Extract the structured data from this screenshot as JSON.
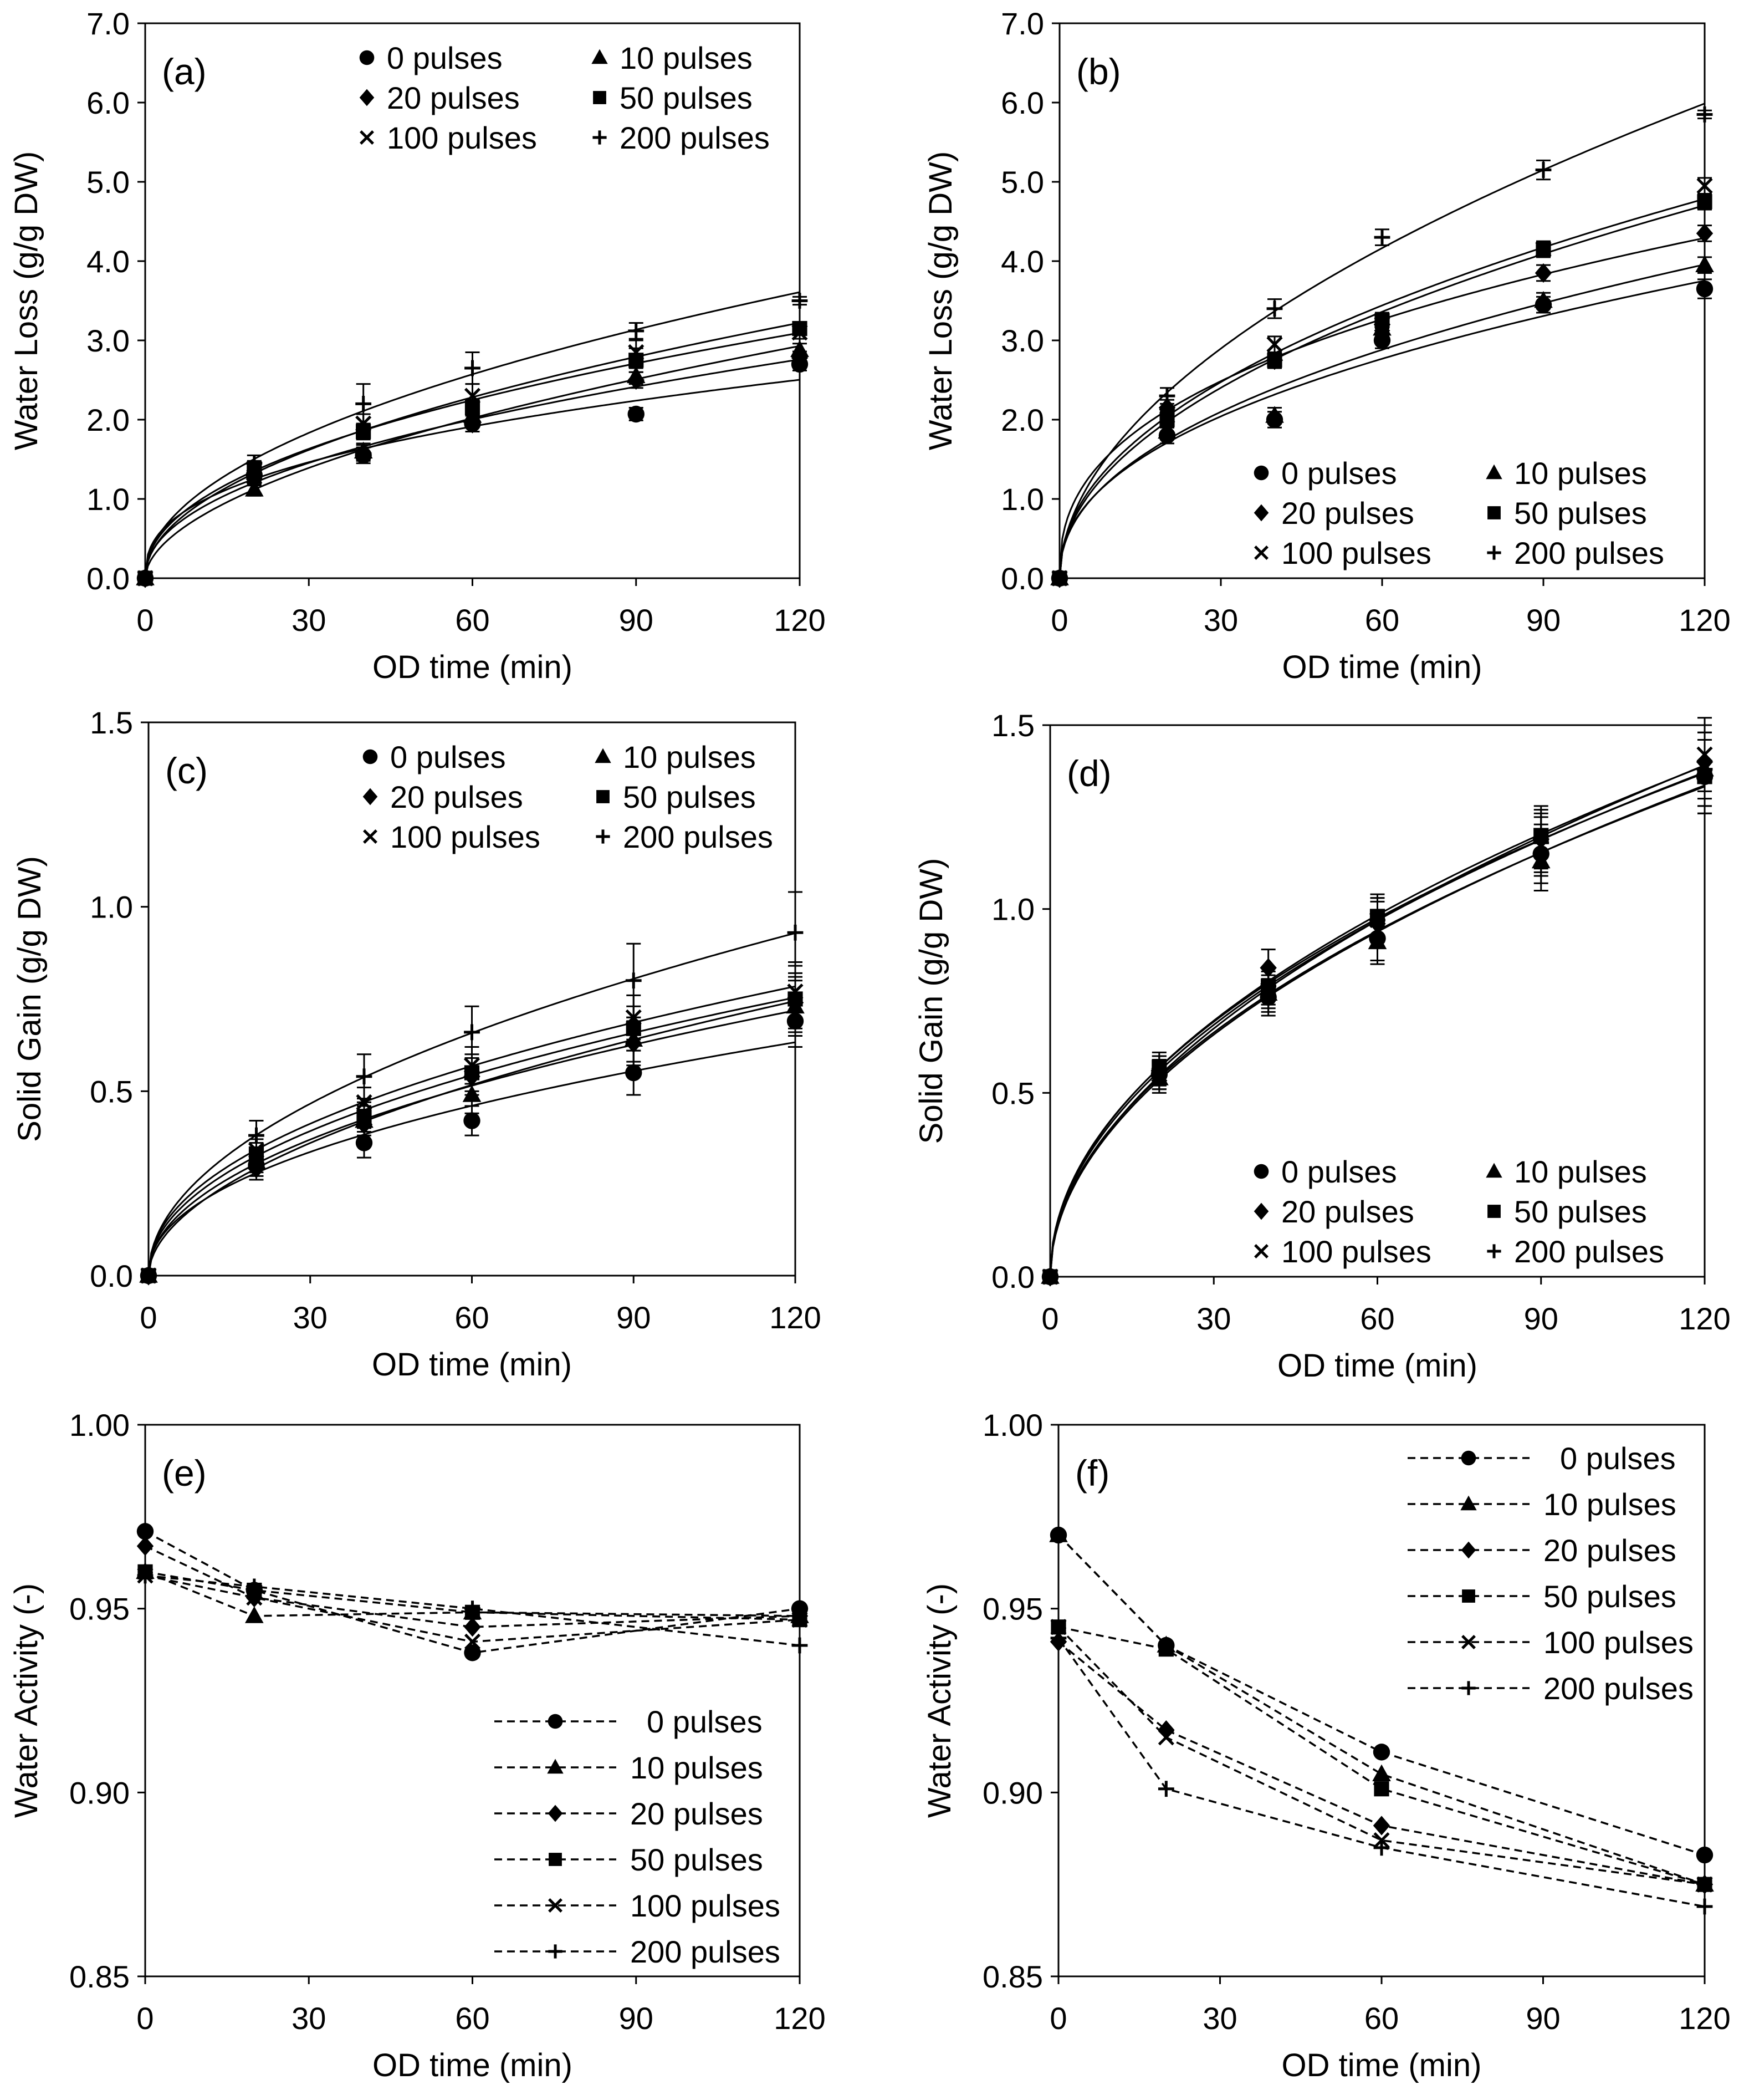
{
  "chart_data": [
    {
      "id": "a",
      "type": "scatter",
      "panel_label": "(a)",
      "xlabel": "OD time (min)",
      "ylabel": "Water Loss (g/g DW)",
      "xlim": [
        0,
        120
      ],
      "ylim": [
        0,
        7
      ],
      "xticks": [
        "0",
        "30",
        "60",
        "90",
        "120"
      ],
      "yticks": [
        "0.0",
        "1.0",
        "2.0",
        "3.0",
        "4.0",
        "5.0",
        "6.0",
        "7.0"
      ],
      "legend_position": "top-right",
      "legend_cols": 2,
      "fit": "power",
      "x": [
        0,
        20,
        40,
        60,
        90,
        120
      ],
      "series": [
        {
          "name": "0 pulses",
          "marker": "circle",
          "values": [
            0,
            1.3,
            1.55,
            1.95,
            2.07,
            2.7
          ],
          "err": [
            0,
            0.08,
            0.1,
            0.1,
            0.08,
            0.08
          ]
        },
        {
          "name": "10 pulses",
          "marker": "triangle",
          "values": [
            0,
            1.12,
            1.6,
            2.05,
            2.55,
            2.88
          ],
          "err": [
            0,
            0.08,
            0.1,
            0.1,
            0.1,
            0.08
          ]
        },
        {
          "name": "20 pulses",
          "marker": "diamond",
          "values": [
            0,
            1.25,
            1.58,
            1.95,
            2.5,
            2.78
          ],
          "err": [
            0,
            0.08,
            0.1,
            0.1,
            0.1,
            0.08
          ]
        },
        {
          "name": "50 pulses",
          "marker": "square",
          "values": [
            0,
            1.38,
            1.85,
            2.15,
            2.75,
            3.15
          ],
          "err": [
            0,
            0.1,
            0.1,
            0.1,
            0.15,
            0.08
          ]
        },
        {
          "name": "100 pulses",
          "marker": "x",
          "values": [
            0,
            1.28,
            1.95,
            2.3,
            2.85,
            3.1
          ],
          "err": [
            0,
            0.1,
            0.12,
            0.15,
            0.15,
            0.08
          ]
        },
        {
          "name": "200 pulses",
          "marker": "plus",
          "values": [
            0,
            1.45,
            2.2,
            2.65,
            3.12,
            3.5
          ],
          "err": [
            0,
            0.1,
            0.25,
            0.2,
            0.1,
            0.05
          ]
        }
      ]
    },
    {
      "id": "b",
      "type": "scatter",
      "panel_label": "(b)",
      "xlabel": "OD time (min)",
      "ylabel": "Water Loss (g/g DW)",
      "xlim": [
        0,
        120
      ],
      "ylim": [
        0,
        7
      ],
      "xticks": [
        "0",
        "30",
        "60",
        "90",
        "120"
      ],
      "yticks": [
        "0.0",
        "1.0",
        "2.0",
        "3.0",
        "4.0",
        "5.0",
        "6.0",
        "7.0"
      ],
      "legend_position": "bottom-right",
      "legend_cols": 2,
      "fit": "power",
      "x": [
        0,
        20,
        40,
        60,
        90,
        120
      ],
      "series": [
        {
          "name": "0 pulses",
          "marker": "circle",
          "values": [
            0,
            1.8,
            2.0,
            3.0,
            3.45,
            3.65
          ],
          "err": [
            0,
            0.1,
            0.1,
            0.1,
            0.1,
            0.12
          ]
        },
        {
          "name": "10 pulses",
          "marker": "triangle",
          "values": [
            0,
            1.85,
            2.05,
            3.15,
            3.5,
            3.95
          ],
          "err": [
            0,
            0.1,
            0.1,
            0.1,
            0.1,
            0.1
          ]
        },
        {
          "name": "20 pulses",
          "marker": "diamond",
          "values": [
            0,
            2.15,
            2.75,
            3.2,
            3.85,
            4.35
          ],
          "err": [
            0,
            0.1,
            0.1,
            0.1,
            0.1,
            0.1
          ]
        },
        {
          "name": "50 pulses",
          "marker": "square",
          "values": [
            0,
            2.0,
            2.75,
            3.25,
            4.15,
            4.75
          ],
          "err": [
            0,
            0.1,
            0.1,
            0.1,
            0.1,
            0.1
          ]
        },
        {
          "name": "100 pulses",
          "marker": "x",
          "values": [
            0,
            2.05,
            2.95,
            3.2,
            4.15,
            4.95
          ],
          "err": [
            0,
            0.1,
            0.1,
            0.1,
            0.1,
            0.1
          ]
        },
        {
          "name": "200 pulses",
          "marker": "plus",
          "values": [
            0,
            2.3,
            3.4,
            4.3,
            5.15,
            5.85
          ],
          "err": [
            0,
            0.1,
            0.12,
            0.1,
            0.12,
            0.05
          ]
        }
      ]
    },
    {
      "id": "c",
      "type": "scatter",
      "panel_label": "(c)",
      "xlabel": "OD time (min)",
      "ylabel": "Solid Gain (g/g DW)",
      "xlim": [
        0,
        120
      ],
      "ylim": [
        0,
        1.5
      ],
      "xticks": [
        "0",
        "30",
        "60",
        "90",
        "120"
      ],
      "yticks": [
        "0.0",
        "0.5",
        "1.0",
        "1.5"
      ],
      "legend_position": "top-right",
      "legend_cols": 2,
      "fit": "power",
      "x": [
        0,
        20,
        40,
        60,
        90,
        120
      ],
      "series": [
        {
          "name": "0 pulses",
          "marker": "circle",
          "values": [
            0,
            0.3,
            0.36,
            0.42,
            0.55,
            0.69
          ],
          "err": [
            0,
            0.03,
            0.04,
            0.04,
            0.06,
            0.07
          ]
        },
        {
          "name": "10 pulses",
          "marker": "triangle",
          "values": [
            0,
            0.31,
            0.42,
            0.49,
            0.64,
            0.73
          ],
          "err": [
            0,
            0.03,
            0.04,
            0.05,
            0.06,
            0.07
          ]
        },
        {
          "name": "20 pulses",
          "marker": "diamond",
          "values": [
            0,
            0.29,
            0.41,
            0.54,
            0.63,
            0.74
          ],
          "err": [
            0,
            0.03,
            0.04,
            0.05,
            0.06,
            0.07
          ]
        },
        {
          "name": "50 pulses",
          "marker": "square",
          "values": [
            0,
            0.33,
            0.43,
            0.55,
            0.67,
            0.75
          ],
          "err": [
            0,
            0.03,
            0.04,
            0.05,
            0.06,
            0.1
          ]
        },
        {
          "name": "100 pulses",
          "marker": "x",
          "values": [
            0,
            0.34,
            0.47,
            0.57,
            0.7,
            0.77
          ],
          "err": [
            0,
            0.03,
            0.04,
            0.05,
            0.06,
            0.07
          ]
        },
        {
          "name": "200 pulses",
          "marker": "plus",
          "values": [
            0,
            0.38,
            0.54,
            0.66,
            0.8,
            0.93
          ],
          "err": [
            0,
            0.04,
            0.06,
            0.07,
            0.1,
            0.11
          ]
        }
      ]
    },
    {
      "id": "d",
      "type": "scatter",
      "panel_label": "(d)",
      "xlabel": "OD time (min)",
      "ylabel": "Solid Gain (g/g DW)",
      "xlim": [
        0,
        120
      ],
      "ylim": [
        0,
        1.5
      ],
      "xticks": [
        "0",
        "30",
        "60",
        "90",
        "120"
      ],
      "yticks": [
        "0.0",
        "0.5",
        "1.0",
        "1.5"
      ],
      "legend_position": "bottom-right",
      "legend_cols": 2,
      "fit": "power",
      "x": [
        0,
        20,
        40,
        60,
        90,
        120
      ],
      "series": [
        {
          "name": "0 pulses",
          "marker": "circle",
          "values": [
            0,
            0.55,
            0.76,
            0.92,
            1.15,
            1.36
          ],
          "err": [
            0,
            0.04,
            0.05,
            0.06,
            0.08,
            0.1
          ]
        },
        {
          "name": "10 pulses",
          "marker": "triangle",
          "values": [
            0,
            0.54,
            0.77,
            0.91,
            1.13,
            1.38
          ],
          "err": [
            0,
            0.04,
            0.05,
            0.06,
            0.08,
            0.1
          ]
        },
        {
          "name": "20 pulses",
          "marker": "diamond",
          "values": [
            0,
            0.56,
            0.84,
            0.96,
            1.19,
            1.4
          ],
          "err": [
            0,
            0.04,
            0.05,
            0.06,
            0.08,
            0.1
          ]
        },
        {
          "name": "50 pulses",
          "marker": "square",
          "values": [
            0,
            0.57,
            0.79,
            0.98,
            1.2,
            1.36
          ],
          "err": [
            0,
            0.04,
            0.05,
            0.06,
            0.08,
            0.1
          ]
        },
        {
          "name": "100 pulses",
          "marker": "x",
          "values": [
            0,
            0.55,
            0.78,
            0.97,
            1.17,
            1.42
          ],
          "err": [
            0,
            0.04,
            0.05,
            0.06,
            0.08,
            0.1
          ]
        },
        {
          "name": "200 pulses",
          "marker": "plus",
          "values": [
            0,
            0.56,
            0.79,
            0.97,
            1.18,
            1.38
          ],
          "err": [
            0,
            0.04,
            0.05,
            0.06,
            0.08,
            0.1
          ]
        }
      ]
    },
    {
      "id": "e",
      "type": "line",
      "panel_label": "(e)",
      "xlabel": "OD time (min)",
      "ylabel": "Water Activity (-)",
      "xlim": [
        0,
        120
      ],
      "ylim": [
        0.85,
        1.0
      ],
      "xticks": [
        "0",
        "30",
        "60",
        "90",
        "120"
      ],
      "yticks": [
        "0.85",
        "0.90",
        "0.95",
        "1.00"
      ],
      "legend_position": "bottom-right",
      "legend_cols": 1,
      "line_style": "dashed",
      "x": [
        0,
        20,
        60,
        120
      ],
      "series": [
        {
          "name": "0 pulses",
          "marker": "circle",
          "values": [
            0.971,
            0.955,
            0.938,
            0.95
          ]
        },
        {
          "name": "10 pulses",
          "marker": "triangle",
          "values": [
            0.96,
            0.948,
            0.949,
            0.948
          ]
        },
        {
          "name": "20 pulses",
          "marker": "diamond",
          "values": [
            0.967,
            0.953,
            0.945,
            0.948
          ]
        },
        {
          "name": "50 pulses",
          "marker": "square",
          "values": [
            0.96,
            0.955,
            0.949,
            0.947
          ]
        },
        {
          "name": "100 pulses",
          "marker": "x",
          "values": [
            0.959,
            0.953,
            0.941,
            0.947
          ]
        },
        {
          "name": "200 pulses",
          "marker": "plus",
          "values": [
            0.959,
            0.956,
            0.95,
            0.94
          ]
        }
      ]
    },
    {
      "id": "f",
      "type": "line",
      "panel_label": "(f)",
      "xlabel": "OD time (min)",
      "ylabel": "Water Activity (-)",
      "xlim": [
        0,
        120
      ],
      "ylim": [
        0.85,
        1.0
      ],
      "xticks": [
        "0",
        "30",
        "60",
        "90",
        "120"
      ],
      "yticks": [
        "0.85",
        "0.90",
        "0.95",
        "1.00"
      ],
      "legend_position": "top-right",
      "legend_cols": 1,
      "line_style": "dashed",
      "x": [
        0,
        20,
        60,
        120
      ],
      "series": [
        {
          "name": "0 pulses",
          "marker": "circle",
          "values": [
            0.97,
            0.94,
            0.911,
            0.883
          ]
        },
        {
          "name": "10 pulses",
          "marker": "triangle",
          "values": [
            0.97,
            0.94,
            0.905,
            0.875
          ]
        },
        {
          "name": "20 pulses",
          "marker": "diamond",
          "values": [
            0.941,
            0.917,
            0.891,
            0.875
          ]
        },
        {
          "name": "50 pulses",
          "marker": "square",
          "values": [
            0.945,
            0.939,
            0.901,
            0.875
          ]
        },
        {
          "name": "100 pulses",
          "marker": "x",
          "values": [
            0.945,
            0.915,
            0.887,
            0.875
          ]
        },
        {
          "name": "200 pulses",
          "marker": "plus",
          "values": [
            0.942,
            0.901,
            0.885,
            0.869
          ]
        }
      ]
    }
  ]
}
